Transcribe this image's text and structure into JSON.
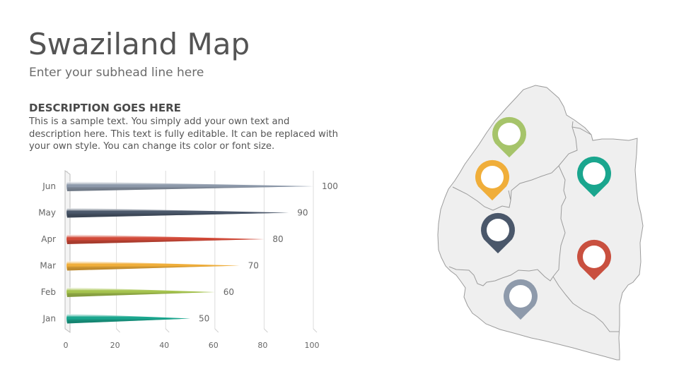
{
  "slide": {
    "title": "Swaziland Map",
    "subtitle": "Enter your subhead line here",
    "description_heading": "DESCRIPTION GOES HERE",
    "description_body": "This is a sample text. You simply add your own text and description here. This text is fully editable. It can be replaced with your own style. You can change its color or font size."
  },
  "chart_data": {
    "type": "bar",
    "orientation": "horizontal",
    "categories": [
      "Jan",
      "Feb",
      "Mar",
      "Apr",
      "May",
      "Jun"
    ],
    "values": [
      50,
      60,
      70,
      80,
      90,
      100
    ],
    "colors": [
      "#1aa68e",
      "#a6c44f",
      "#f0ae3a",
      "#d24a39",
      "#4a576a",
      "#8e9aab"
    ],
    "xlim": [
      0,
      100
    ],
    "xticks": [
      0,
      20,
      40,
      60,
      80,
      100
    ],
    "grid": true,
    "data_labels": true
  },
  "map": {
    "fill": "#efefef",
    "stroke": "#9c9c9c",
    "pins": [
      {
        "name": "pin-green",
        "color": "#a6c46a"
      },
      {
        "name": "pin-orange",
        "color": "#f0ae3a"
      },
      {
        "name": "pin-teal",
        "color": "#1aa68e"
      },
      {
        "name": "pin-navy",
        "color": "#4a576a"
      },
      {
        "name": "pin-red",
        "color": "#c9503f"
      },
      {
        "name": "pin-gray",
        "color": "#8e9aab"
      }
    ]
  }
}
